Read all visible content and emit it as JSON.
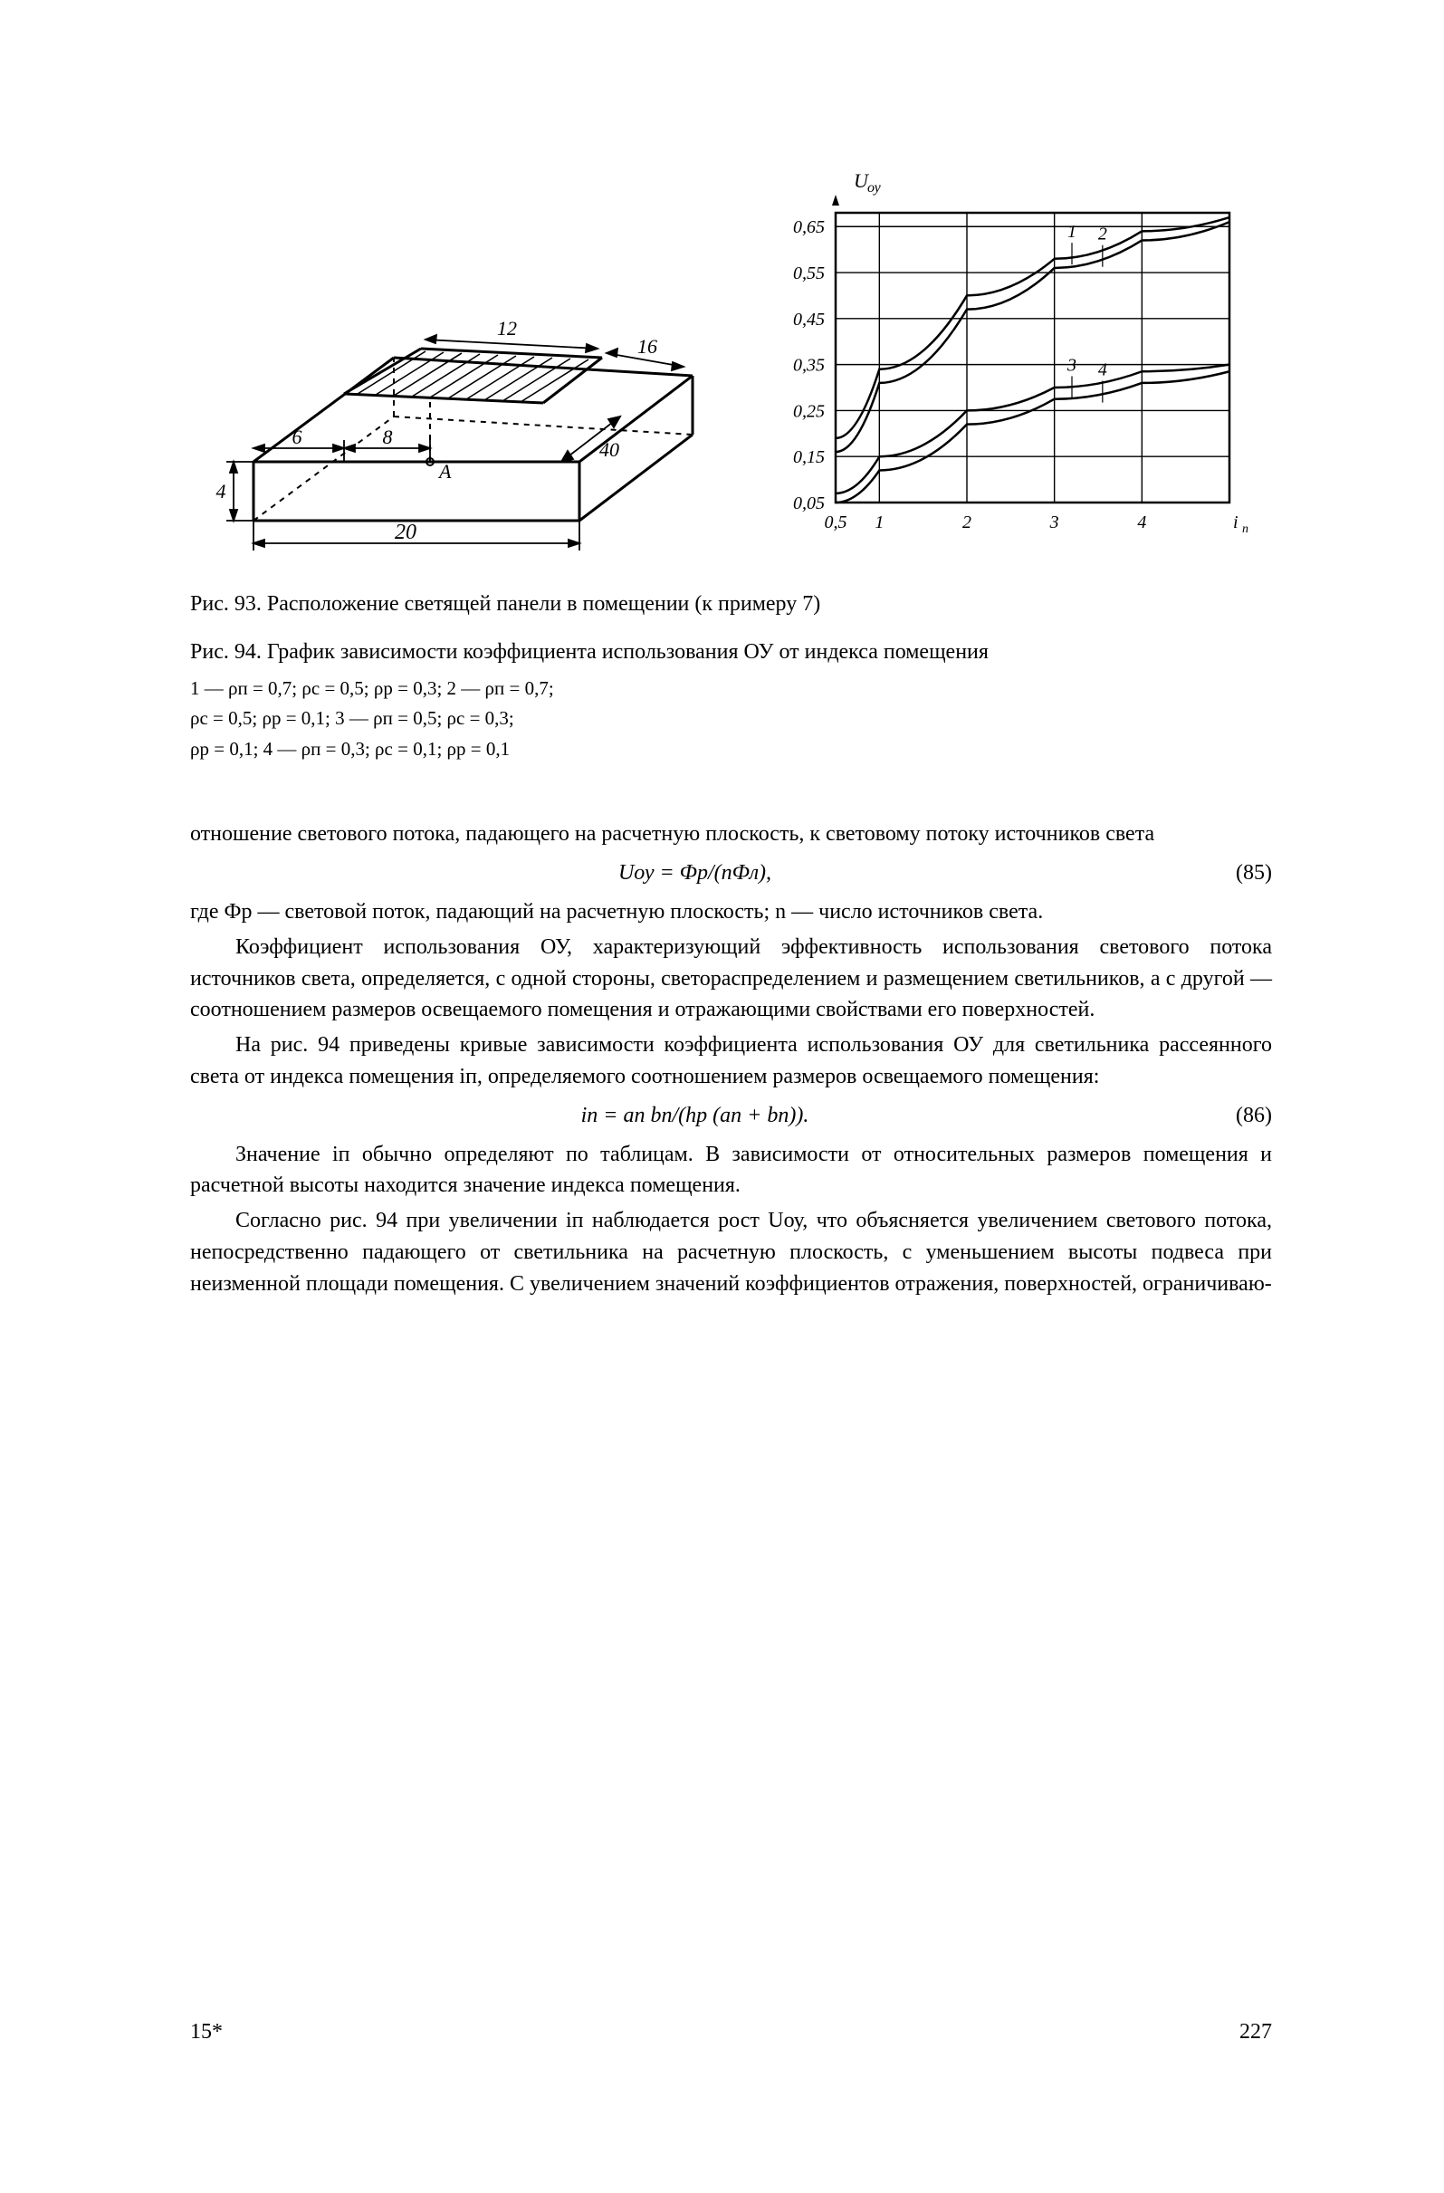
{
  "page_number": "227",
  "sheet_mark": "15*",
  "figures": {
    "fig93": {
      "caption": "Рис. 93. Расположение светящей панели в помещении (к примеру 7)",
      "dimensions": {
        "length": "20",
        "width_segments": [
          "6",
          "8"
        ],
        "panel_width": "12",
        "panel_top_offset": "16",
        "height": "4",
        "panel_height": "40",
        "point": "A"
      }
    },
    "fig94": {
      "caption_main": "Рис. 94. График зависимости коэффициента использования ОУ от индекса помещения",
      "params_lines": [
        "1 — ρп = 0,7;  ρс = 0,5;  ρр = 0,3;  2 — ρп = 0,7;",
        "ρс = 0,5;  ρр = 0,1;  3 — ρп = 0,5;  ρс = 0,3;",
        "ρр = 0,1;  4 — ρп = 0,3;  ρс = 0,1;  ρр = 0,1"
      ],
      "chart": {
        "type": "line",
        "y_label": "Uоу",
        "x_label": "iп",
        "x_ticks": [
          "0,5",
          "1",
          "2",
          "3",
          "4"
        ],
        "y_ticks": [
          "0,05",
          "0,15",
          "0,25",
          "0,35",
          "0,45",
          "0,55",
          "0,65"
        ],
        "xlim": [
          0.5,
          5
        ],
        "ylim": [
          0.05,
          0.68
        ],
        "series_labels": [
          "1",
          "2",
          "3",
          "4"
        ],
        "curves": {
          "1": [
            [
              0.5,
              0.19
            ],
            [
              1,
              0.34
            ],
            [
              2,
              0.5
            ],
            [
              3,
              0.58
            ],
            [
              4,
              0.64
            ],
            [
              5,
              0.67
            ]
          ],
          "2": [
            [
              0.5,
              0.16
            ],
            [
              1,
              0.31
            ],
            [
              2,
              0.47
            ],
            [
              3,
              0.56
            ],
            [
              4,
              0.62
            ],
            [
              5,
              0.66
            ]
          ],
          "3": [
            [
              0.5,
              0.07
            ],
            [
              1,
              0.15
            ],
            [
              2,
              0.25
            ],
            [
              3,
              0.3
            ],
            [
              4,
              0.335
            ],
            [
              5,
              0.35
            ]
          ],
          "4": [
            [
              0.5,
              0.05
            ],
            [
              1,
              0.12
            ],
            [
              2,
              0.22
            ],
            [
              3,
              0.275
            ],
            [
              4,
              0.31
            ],
            [
              5,
              0.335
            ]
          ]
        },
        "line_color": "#000000",
        "line_width": 2,
        "grid_color": "#000000",
        "background_color": "#ffffff",
        "axis_fontsize": 20,
        "title_fontsize": 22
      }
    }
  },
  "paragraphs": {
    "p1": "отношение светового потока, падающего на расчетную плоскость, к световому потоку источников света",
    "eq85": "Uоу = Фр/(nФл),",
    "eq85_num": "(85)",
    "p2": "где Фр — световой поток, падающий на расчетную плоскость; n — число источников света.",
    "p3": "Коэффициент использования ОУ, характеризующий эффективность использования светового потока источников света, определяется, с одной стороны, светораспределением и размещением светильников, а с другой — соотношением размеров освещаемого помещения и отражающими свойствами его поверхностей.",
    "p4": "На рис. 94 приведены кривые зависимости коэффициента использования ОУ для светильника рассеянного света от индекса помещения iп, определяемого соотношением размеров освещаемого помещения:",
    "eq86": "iп = aп bп/(hр (aп + bп)).",
    "eq86_num": "(86)",
    "p5": "Значение iп обычно определяют по таблицам. В зависимости от относительных размеров помещения и расчетной высоты находится значение индекса помещения.",
    "p6": "Согласно рис. 94 при увеличении iп наблюдается рост Uоу, что объясняется увеличением светового потока, непосредственно падающего от светильника на расчетную плоскость, с уменьшением высоты подвеса при неизменной площади помещения. С увеличением значений коэффициентов отражения, поверхностей, ограничиваю-"
  }
}
